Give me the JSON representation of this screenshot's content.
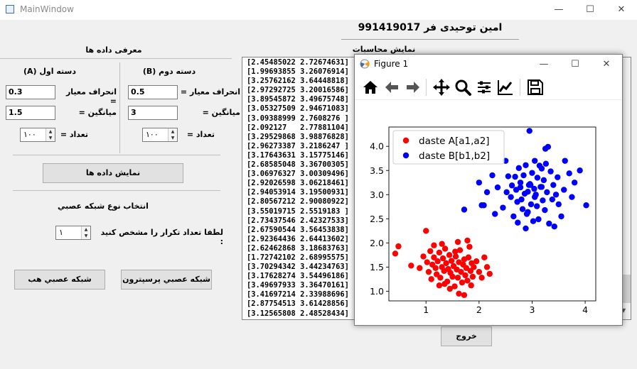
{
  "window": {
    "title": "MainWindow",
    "minimize": "—",
    "maximize": "☐",
    "close": "✕"
  },
  "header": {
    "name": "991419017 امين توحيدی فر"
  },
  "intro": {
    "title": "معرفی داده ها"
  },
  "group_a": {
    "title": "دسته اول (A)",
    "std_label": "انحراف معيار =",
    "std_value": "0.3",
    "mean_label": "ميانگين =",
    "mean_value": "1.5",
    "count_label": "تعداد =",
    "count_value": "۱۰۰"
  },
  "group_b": {
    "title": "دسته دوم (B)",
    "std_label": "انحراف معيار =",
    "std_value": "0.5",
    "mean_label": "ميانگين =",
    "mean_value": "3",
    "count_label": "تعداد =",
    "count_value": "۱۰۰"
  },
  "show_data_button": "نمايش داده ها",
  "network": {
    "title": "انتخاب نوع شبکه عصبي",
    "iter_label": "لطفا تعداد تکرار را مشخص کنيد :",
    "iter_value": "۱",
    "hebb_button": "شبکه عصبي هب",
    "perceptron_button": "شبکه عصبي پرسپترون"
  },
  "exit_button": "خروج",
  "results": {
    "title": "نمايش محاسبات",
    "lines": [
      "[2.45485022 2.72674631]",
      "[1.99693855 3.26076914]",
      "[3.25762162 3.64448818]",
      "[2.97292725 3.20016586]",
      "[3.89545872 3.49675748]",
      "[3.05327509 2.94671083]",
      "[3.09388999 2.7608276 ]",
      "[2.092127   2.77881104]",
      "[3.29529868 3.98876828]",
      "[2.96273387 3.2186247 ]",
      "[3.17643631 3.15775146]",
      "[2.68585048 3.36700305]",
      "[3.06976327 3.00309496]",
      "[2.92026598 3.06218461]",
      "[2.94053914 3.19500931]",
      "[2.80567212 2.90080922]",
      "[3.55019715 2.5519183 ]",
      "[2.73437546 2.42327533]",
      "[2.67590544 3.56453838]",
      "[2.92364436 2.64413602]",
      "[2.62462868 3.18683763]",
      "[1.72742102 2.68995575]",
      "[3.70294342 3.44234763]",
      "[3.17628274 3.54496186]",
      "[3.49697933 3.36470161]",
      "[3.41697214 2.33988696]",
      "[2.87754513 3.61428856]",
      "[3.12565808 2.48528434]"
    ]
  },
  "figure": {
    "title": "Figure 1",
    "minimize": "—",
    "maximize": "☐",
    "close": "✕"
  },
  "chart_data": {
    "type": "scatter",
    "xlim": [
      0.3,
      4.2
    ],
    "ylim": [
      0.8,
      4.4
    ],
    "xticks": [
      "1",
      "2",
      "3",
      "4"
    ],
    "yticks": [
      "1.0",
      "1.5",
      "2.0",
      "2.5",
      "3.0",
      "3.5",
      "4.0"
    ],
    "legend_position": "top-left",
    "grid": false,
    "series": [
      {
        "name": "daste A[a1,a2]",
        "color": "#ff0000",
        "points": [
          [
            0.42,
            1.78
          ],
          [
            0.48,
            1.93
          ],
          [
            0.72,
            1.53
          ],
          [
            0.88,
            1.48
          ],
          [
            0.95,
            1.72
          ],
          [
            1.02,
            1.6
          ],
          [
            1.05,
            1.4
          ],
          [
            1.08,
            1.83
          ],
          [
            1.1,
            1.25
          ],
          [
            1.12,
            1.55
          ],
          [
            1.15,
            1.7
          ],
          [
            1.18,
            1.48
          ],
          [
            1.2,
            1.35
          ],
          [
            1.22,
            1.62
          ],
          [
            1.25,
            1.8
          ],
          [
            1.27,
            1.28
          ],
          [
            1.3,
            1.5
          ],
          [
            1.32,
            1.68
          ],
          [
            1.34,
            1.42
          ],
          [
            1.36,
            1.88
          ],
          [
            1.38,
            1.58
          ],
          [
            1.4,
            1.2
          ],
          [
            1.42,
            1.46
          ],
          [
            1.44,
            1.75
          ],
          [
            1.46,
            1.38
          ],
          [
            1.48,
            1.63
          ],
          [
            1.5,
            1.3
          ],
          [
            1.52,
            1.52
          ],
          [
            1.54,
            1.1
          ],
          [
            1.56,
            1.72
          ],
          [
            1.58,
            1.45
          ],
          [
            1.6,
            1.28
          ],
          [
            1.62,
            1.6
          ],
          [
            1.64,
            1.85
          ],
          [
            1.66,
            1.4
          ],
          [
            1.68,
            1.18
          ],
          [
            1.7,
            1.55
          ],
          [
            1.72,
            1.66
          ],
          [
            1.74,
            1.33
          ],
          [
            1.76,
            1.48
          ],
          [
            1.78,
            1.22
          ],
          [
            1.8,
            1.7
          ],
          [
            1.82,
            1.92
          ],
          [
            1.84,
            1.42
          ],
          [
            1.86,
            1.58
          ],
          [
            1.88,
            1.3
          ],
          [
            1.9,
            1.5
          ],
          [
            1.95,
            1.62
          ],
          [
            2.0,
            1.4
          ],
          [
            2.05,
            1.28
          ],
          [
            2.1,
            1.7
          ],
          [
            2.15,
            1.5
          ],
          [
            1.62,
            0.95
          ],
          [
            1.72,
            0.92
          ],
          [
            1.45,
            1.05
          ],
          [
            1.25,
            1.12
          ],
          [
            1.0,
            2.25
          ],
          [
            1.6,
            2.02
          ],
          [
            1.78,
            2.05
          ],
          [
            1.3,
            1.98
          ],
          [
            1.15,
            1.95
          ],
          [
            2.2,
            1.36
          ],
          [
            1.35,
            1.15
          ],
          [
            1.55,
            1.82
          ],
          [
            1.85,
            1.12
          ]
        ]
      },
      {
        "name": "daste B[b1,b2]",
        "color": "#0000ff",
        "points": [
          [
            1.72,
            2.69
          ],
          [
            2.0,
            3.25
          ],
          [
            2.05,
            2.78
          ],
          [
            2.09,
            2.78
          ],
          [
            2.25,
            3.4
          ],
          [
            2.35,
            3.15
          ],
          [
            2.45,
            2.73
          ],
          [
            2.52,
            3.05
          ],
          [
            2.55,
            3.38
          ],
          [
            2.6,
            2.95
          ],
          [
            2.62,
            3.19
          ],
          [
            2.65,
            2.55
          ],
          [
            2.68,
            3.37
          ],
          [
            2.7,
            3.1
          ],
          [
            2.72,
            2.85
          ],
          [
            2.73,
            2.42
          ],
          [
            2.75,
            3.55
          ],
          [
            2.78,
            3.25
          ],
          [
            2.8,
            2.9
          ],
          [
            2.82,
            2.7
          ],
          [
            2.84,
            3.4
          ],
          [
            2.86,
            3.02
          ],
          [
            2.88,
            3.61
          ],
          [
            2.9,
            2.6
          ],
          [
            2.92,
            3.06
          ],
          [
            2.92,
            2.64
          ],
          [
            2.94,
            3.2
          ],
          [
            2.96,
            3.22
          ],
          [
            2.97,
            3.2
          ],
          [
            2.98,
            2.8
          ],
          [
            3.0,
            3.45
          ],
          [
            3.02,
            2.45
          ],
          [
            3.04,
            3.12
          ],
          [
            3.05,
            2.95
          ],
          [
            3.07,
            3.0
          ],
          [
            3.09,
            2.76
          ],
          [
            3.1,
            3.35
          ],
          [
            3.12,
            2.49
          ],
          [
            3.14,
            3.6
          ],
          [
            3.16,
            3.16
          ],
          [
            3.18,
            3.54
          ],
          [
            3.18,
            3.16
          ],
          [
            3.2,
            2.88
          ],
          [
            3.22,
            3.3
          ],
          [
            3.24,
            2.68
          ],
          [
            3.26,
            3.64
          ],
          [
            3.28,
            3.05
          ],
          [
            3.3,
            3.99
          ],
          [
            3.32,
            2.4
          ],
          [
            3.35,
            3.48
          ],
          [
            3.38,
            2.9
          ],
          [
            3.4,
            3.2
          ],
          [
            3.42,
            2.34
          ],
          [
            3.45,
            3.0
          ],
          [
            3.48,
            3.36
          ],
          [
            3.5,
            2.8
          ],
          [
            3.55,
            2.55
          ],
          [
            3.6,
            3.1
          ],
          [
            3.7,
            3.44
          ],
          [
            3.75,
            2.95
          ],
          [
            3.8,
            3.25
          ],
          [
            3.9,
            3.5
          ],
          [
            4.02,
            2.78
          ],
          [
            2.95,
            4.32
          ],
          [
            3.25,
            3.95
          ],
          [
            2.5,
            3.7
          ],
          [
            2.3,
            2.6
          ],
          [
            2.15,
            3.05
          ],
          [
            3.62,
            3.7
          ],
          [
            2.88,
            2.3
          ],
          [
            3.05,
            3.7
          ],
          [
            2.78,
            3.15
          ]
        ]
      }
    ]
  }
}
